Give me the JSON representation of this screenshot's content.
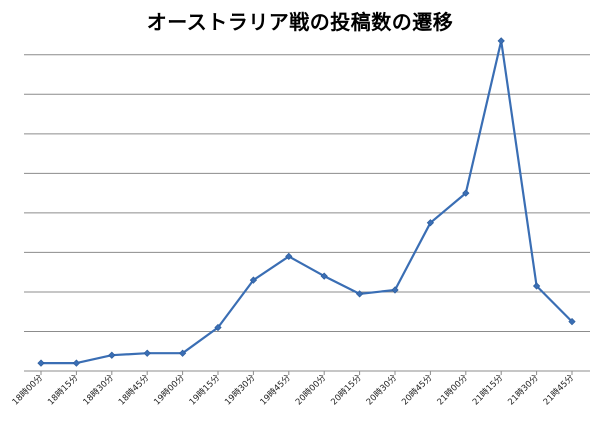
{
  "chart_data": {
    "type": "line",
    "title": "オーストラリア戦の投稿数の遷移",
    "xlabel": "",
    "ylabel": "",
    "categories": [
      "18時00分",
      "18時15分",
      "18時30分",
      "18時45分",
      "19時00分",
      "19時15分",
      "19時30分",
      "19時45分",
      "20時00分",
      "20時15分",
      "20時30分",
      "20時45分",
      "21時00分",
      "21時15分",
      "21時30分",
      "21時45分"
    ],
    "series": [
      {
        "values": [
          0.2,
          0.2,
          0.4,
          0.45,
          0.45,
          1.1,
          2.3,
          2.9,
          2.4,
          1.95,
          2.05,
          3.75,
          4.5,
          8.35,
          2.15,
          1.25
        ]
      }
    ],
    "ylim": [
      0,
      8.5
    ],
    "grid": true,
    "legend": "none",
    "colors": {
      "line": "#3a6eb4",
      "marker": "#3a6eb4",
      "grid": "#8c8c8c"
    }
  }
}
